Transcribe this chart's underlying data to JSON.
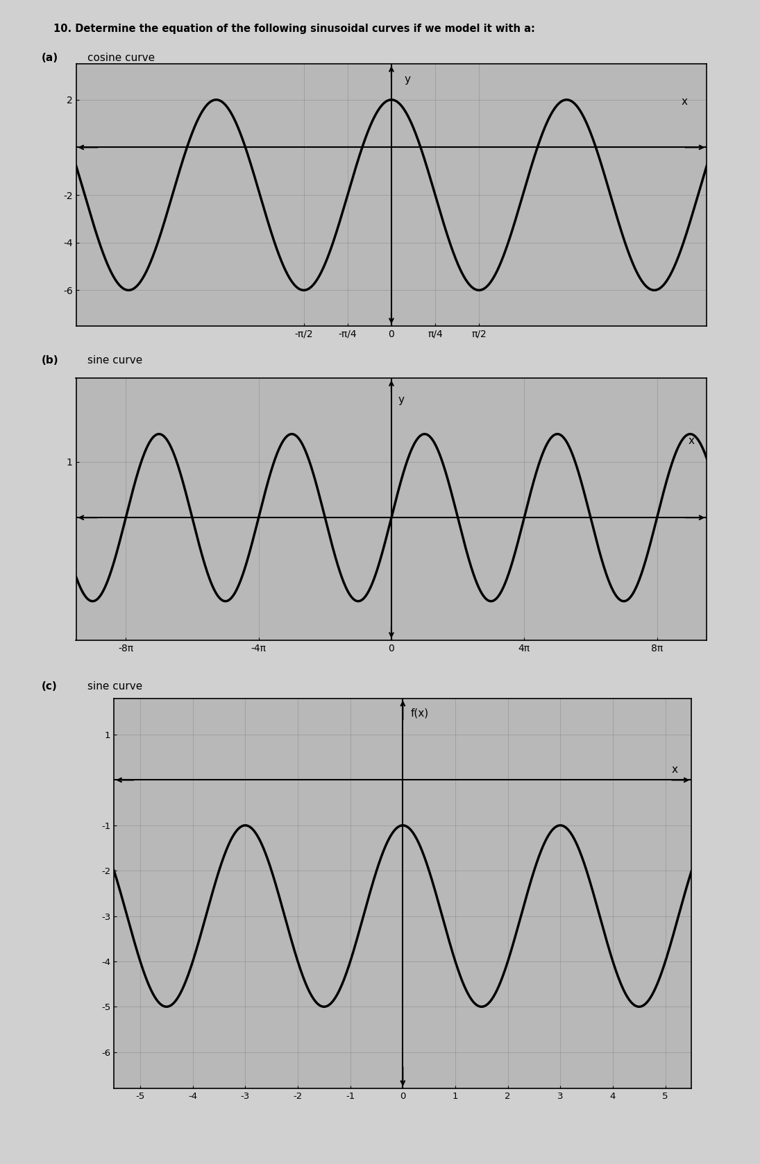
{
  "title": "10. Determine the equation of the following sinusoidal curves if we model it with a:",
  "part_a_label": "(a)",
  "part_a_type": "cosine curve",
  "part_b_label": "(b)",
  "part_b_type": "sine curve",
  "part_c_label": "(c)",
  "part_c_type": "sine curve",
  "bg_color": "#d0d0d0",
  "plot_bg": "#b8b8b8",
  "graph_a": {
    "amplitude": 4,
    "midline": -2,
    "B": 2,
    "func": "cos",
    "xlim": [
      -1.8,
      1.8
    ],
    "ylim": [
      -7.5,
      3.5
    ],
    "xticks_pi": [
      -0.5,
      -0.25,
      0,
      0.25,
      0.5
    ],
    "xticklabels": [
      "-π/2",
      "-π/4",
      "0",
      "π/4",
      "π/2"
    ],
    "yticks": [
      2,
      -2,
      -4,
      -6
    ],
    "xlabel": "x",
    "ylabel": "y"
  },
  "graph_b": {
    "amplitude": 1.5,
    "midline": 0,
    "B": 0.5,
    "func": "sin",
    "xlim_pi": [
      -9.5,
      9.5
    ],
    "ylim": [
      -2.2,
      2.5
    ],
    "xticks_pi": [
      -8,
      -4,
      0,
      4,
      8
    ],
    "xticklabels": [
      "-8π",
      "-4π",
      "0",
      "4π",
      "8π"
    ],
    "yticks": [
      1
    ],
    "xlabel": "x",
    "ylabel": "y"
  },
  "graph_c": {
    "amplitude": 2,
    "midline": -3,
    "B": 2.094395,
    "phase": 0,
    "func": "sin",
    "xlim": [
      -5.5,
      5.5
    ],
    "ylim": [
      -6.8,
      1.8
    ],
    "xticks": [
      -5,
      -4,
      -3,
      -2,
      -1,
      0,
      1,
      2,
      3,
      4,
      5
    ],
    "yticks": [
      1,
      -1,
      -2,
      -3,
      -4,
      -5,
      -6
    ],
    "xlabel": "x",
    "ylabel": "f(x)"
  }
}
